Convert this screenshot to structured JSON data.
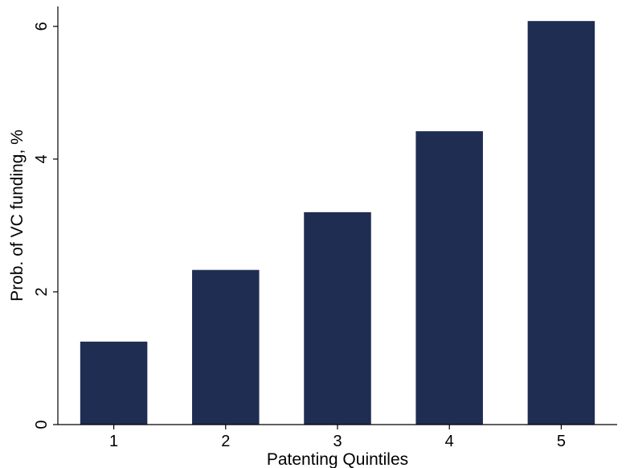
{
  "chart_data": {
    "type": "bar",
    "title": "",
    "xlabel": "Patenting Quintiles",
    "ylabel": "Prob. of VC funding, %",
    "categories": [
      "1",
      "2",
      "3",
      "4",
      "5"
    ],
    "values": [
      1.25,
      2.33,
      3.2,
      4.42,
      6.08
    ],
    "ylim": [
      0,
      6.3
    ],
    "yticks": [
      "0",
      "2",
      "4",
      "6"
    ],
    "grid": false,
    "legend": "none",
    "bar_color": "#1f2d52"
  }
}
